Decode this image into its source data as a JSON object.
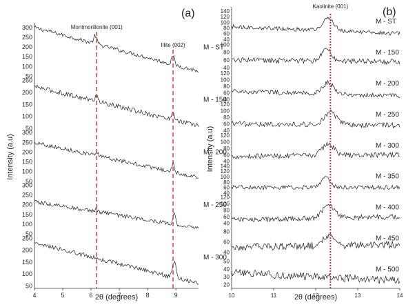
{
  "chart_data": [
    {
      "panel": "(a)",
      "type": "line",
      "xlabel": "2θ (degrees)",
      "ylabel": "Intensity (a.u)",
      "xlim": [
        4,
        9.8
      ],
      "x_ticks": [
        "4",
        "5",
        "6",
        "7",
        "8",
        "9"
      ],
      "annotations": [
        {
          "text": "Montmorillonite (001)",
          "x": 6.2
        },
        {
          "text": "Illite (002)",
          "x": 8.9
        }
      ],
      "series": [
        {
          "name": "M - ST",
          "y_ticks": [
            "300",
            "250",
            "200",
            "150",
            "100",
            "50"
          ],
          "ylim": [
            40,
            310
          ],
          "baseline": [
            300,
            75
          ],
          "peaks": [
            {
              "x": 6.15,
              "h": 40,
              "w": 0.08
            },
            {
              "x": 8.9,
              "h": 45,
              "w": 0.07
            }
          ],
          "noise": 10
        },
        {
          "name": "M - 150",
          "y_ticks": [
            "250",
            "200",
            "150",
            "100",
            "50"
          ],
          "ylim": [
            40,
            260
          ],
          "baseline": [
            225,
            60
          ],
          "peaks": [
            {
              "x": 6.2,
              "h": 25,
              "w": 0.08
            },
            {
              "x": 8.9,
              "h": 40,
              "w": 0.06
            }
          ],
          "noise": 10
        },
        {
          "name": "M - 200",
          "y_ticks": [
            "300",
            "250",
            "200",
            "150",
            "100",
            "50"
          ],
          "ylim": [
            40,
            310
          ],
          "baseline": [
            250,
            70
          ],
          "peaks": [
            {
              "x": 6.2,
              "h": 15,
              "w": 0.08
            },
            {
              "x": 8.9,
              "h": 45,
              "w": 0.06
            }
          ],
          "noise": 10
        },
        {
          "name": "M - 250",
          "y_ticks": [
            "300",
            "250",
            "200",
            "150",
            "100",
            "50"
          ],
          "ylim": [
            40,
            310
          ],
          "baseline": [
            215,
            80
          ],
          "peaks": [
            {
              "x": 6.2,
              "h": 10,
              "w": 0.08
            },
            {
              "x": 8.95,
              "h": 55,
              "w": 0.06
            }
          ],
          "noise": 10
        },
        {
          "name": "M - 300",
          "y_ticks": [
            "250",
            "200",
            "150",
            "100",
            "50"
          ],
          "ylim": [
            40,
            260
          ],
          "baseline": [
            230,
            60
          ],
          "peaks": [
            {
              "x": 8.95,
              "h": 65,
              "w": 0.1
            }
          ],
          "noise": 9
        }
      ]
    },
    {
      "panel": "(b)",
      "type": "line",
      "xlabel": "2θ (degrees)",
      "ylabel": "Intensity (a.u)",
      "xlim": [
        10,
        14
      ],
      "x_ticks": [
        "10",
        "11",
        "12",
        "13",
        "14"
      ],
      "annotations": [
        {
          "text": "Kaolinite (001)",
          "x": 12.35
        }
      ],
      "series": [
        {
          "name": "M - ST",
          "y_ticks": [
            "140",
            "120",
            "100",
            "80",
            "60",
            "40"
          ],
          "ylim": [
            35,
            145
          ],
          "baseline": [
            85,
            60
          ],
          "peaks": [
            {
              "x": 12.3,
              "h": 45,
              "w": 0.18
            }
          ],
          "noise": 7
        },
        {
          "name": "M - 150",
          "y_ticks": [
            "100",
            "80",
            "60",
            "40"
          ],
          "ylim": [
            30,
            110
          ],
          "baseline": [
            60,
            55
          ],
          "peaks": [
            {
              "x": 12.25,
              "h": 35,
              "w": 0.15
            }
          ],
          "noise": 7
        },
        {
          "name": "M - 200",
          "y_ticks": [
            "120",
            "100",
            "80",
            "60",
            "40"
          ],
          "ylim": [
            30,
            125
          ],
          "baseline": [
            65,
            50
          ],
          "peaks": [
            {
              "x": 12.3,
              "h": 35,
              "w": 0.18
            }
          ],
          "noise": 7
        },
        {
          "name": "M - 250",
          "y_ticks": [
            "120",
            "100",
            "80",
            "60",
            "40"
          ],
          "ylim": [
            30,
            125
          ],
          "baseline": [
            60,
            55
          ],
          "peaks": [
            {
              "x": 12.35,
              "h": 40,
              "w": 0.2
            }
          ],
          "noise": 8
        },
        {
          "name": "M - 300",
          "y_ticks": [
            "120",
            "100",
            "80",
            "60",
            "40"
          ],
          "ylim": [
            30,
            125
          ],
          "baseline": [
            55,
            60
          ],
          "peaks": [
            {
              "x": 12.3,
              "h": 35,
              "w": 0.2
            }
          ],
          "noise": 8
        },
        {
          "name": "M - 350",
          "y_ticks": [
            "140",
            "120",
            "100",
            "80",
            "60",
            "40"
          ],
          "ylim": [
            30,
            145
          ],
          "baseline": [
            60,
            60
          ],
          "peaks": [
            {
              "x": 12.25,
              "h": 35,
              "w": 0.15
            }
          ],
          "noise": 8
        },
        {
          "name": "M - 400",
          "y_ticks": [
            "120",
            "100",
            "80",
            "60",
            "40"
          ],
          "ylim": [
            30,
            125
          ],
          "baseline": [
            50,
            60
          ],
          "peaks": [
            {
              "x": 12.3,
              "h": 40,
              "w": 0.2
            }
          ],
          "noise": 8
        },
        {
          "name": "M - 450",
          "y_ticks": [
            "80",
            "60",
            "40"
          ],
          "ylim": [
            30,
            90
          ],
          "baseline": [
            50,
            55
          ],
          "peaks": [
            {
              "x": 12.3,
              "h": 20,
              "w": 0.18
            }
          ],
          "noise": 7
        },
        {
          "name": "M - 500",
          "y_ticks": [
            "50",
            "40",
            "30",
            "20"
          ],
          "ylim": [
            15,
            55
          ],
          "baseline": [
            35,
            25
          ],
          "peaks": [],
          "noise": 5
        }
      ]
    }
  ]
}
